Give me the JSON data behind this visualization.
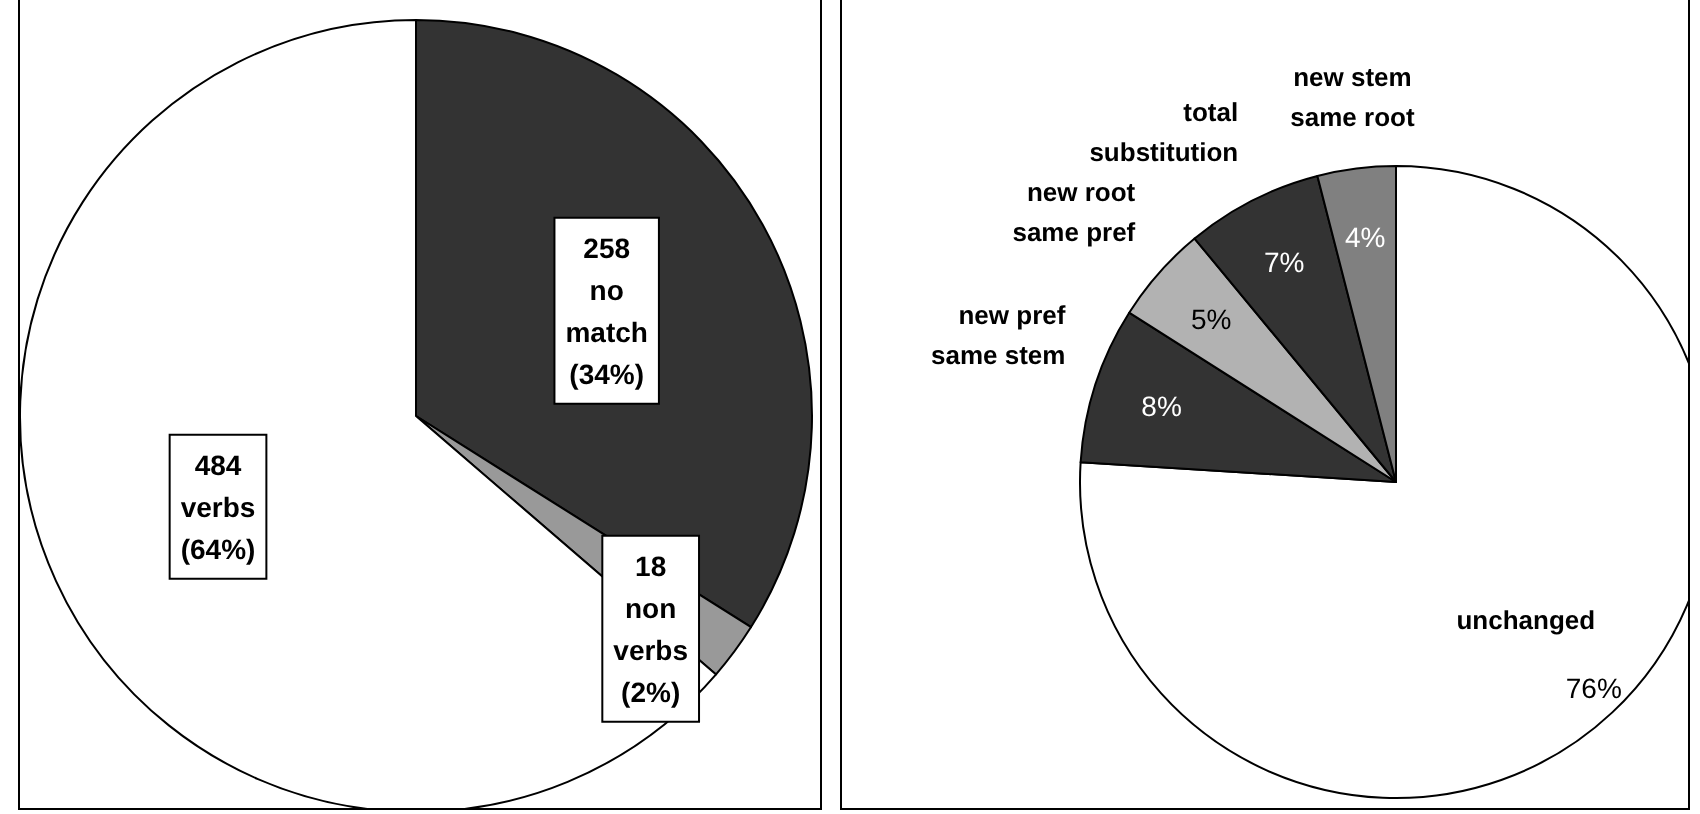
{
  "chart_data": [
    {
      "type": "pie",
      "categories": [
        "no match",
        "non verbs",
        "verbs"
      ],
      "values": [
        258,
        18,
        484
      ],
      "colors": [
        "#333333",
        "#999999",
        "#ffffff"
      ],
      "data_labels": true,
      "annotations": [
        "(34%)",
        "(2%)",
        "(64%)"
      ]
    },
    {
      "type": "pie",
      "categories": [
        "unchanged",
        "new pref same stem",
        "new root same pref",
        "total substitution",
        "new stem same root"
      ],
      "values": [
        76,
        8,
        5,
        7,
        4
      ],
      "colors": [
        "#ffffff",
        "#333333",
        "#b2b2b2",
        "#333333",
        "#808080"
      ],
      "value_labels": [
        "76%",
        "8%",
        "5%",
        "7%",
        "4%"
      ]
    }
  ]
}
